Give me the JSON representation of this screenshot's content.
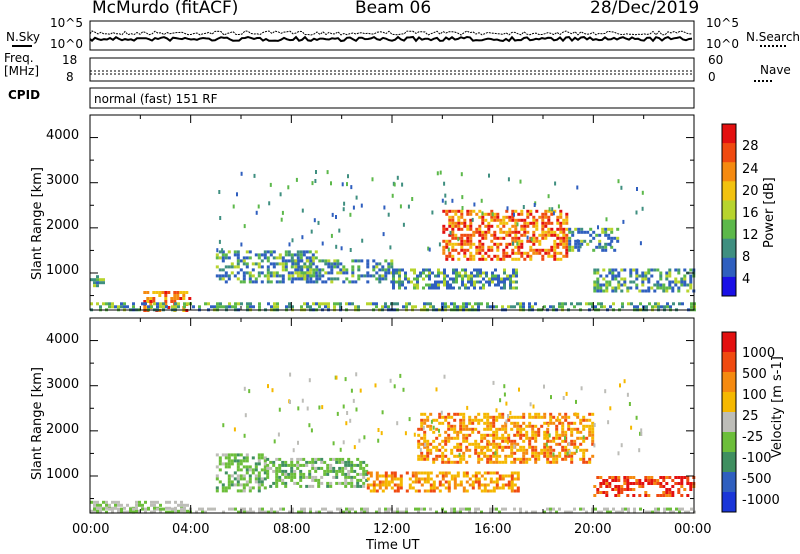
{
  "header": {
    "station": "McMurdo (fitACF)",
    "beam": "Beam 06",
    "date": "28/Dec/2019"
  },
  "top_panels": {
    "nsky_label": "N.Sky",
    "nsky_top": "10^5",
    "nsky_bottom": "10^0",
    "nsearch_label": "N.Search",
    "nsearch_top": "10^5",
    "nsearch_bottom": "10^0",
    "freq_label_1": "Freq.",
    "freq_label_2": "[MHz]",
    "freq_top": "18",
    "freq_bottom": "8",
    "nave_label": "Nave",
    "nave_top": "60",
    "nave_bottom": "0",
    "cpid_label": "CPID",
    "cpid_text": "normal (fast) 151 RF"
  },
  "chart_data": [
    {
      "type": "heatmap",
      "name": "power",
      "ylabel": "Slant Range [km]",
      "ylim": [
        180,
        4500
      ],
      "y_ticks": [
        "1000",
        "2000",
        "3000",
        "4000"
      ],
      "x_ticks": [
        "00:00",
        "04:00",
        "08:00",
        "12:00",
        "16:00",
        "20:00",
        "00:00"
      ],
      "xlim_hours": [
        0,
        24
      ],
      "colorbar": {
        "label": "Power [dB]",
        "ticks": [
          "4",
          "8",
          "12",
          "16",
          "20",
          "24",
          "28"
        ],
        "colors": [
          "#1a10e6",
          "#2f5fbf",
          "#3f8f80",
          "#5cb84a",
          "#b7d42e",
          "#f2c20f",
          "#f58a10",
          "#f04a10",
          "#e31010"
        ]
      },
      "echo_regions": [
        {
          "t0": 2.0,
          "t1": 4.0,
          "r0": 200,
          "r1": 600,
          "level": "high"
        },
        {
          "t0": 0.0,
          "t1": 24.0,
          "r0": 200,
          "r1": 350,
          "level": "low"
        },
        {
          "t0": 0.0,
          "t1": 0.5,
          "r0": 700,
          "r1": 950,
          "level": "low"
        },
        {
          "t0": 5.0,
          "t1": 9.0,
          "r0": 800,
          "r1": 1500,
          "level": "mid"
        },
        {
          "t0": 8.0,
          "t1": 12.0,
          "r0": 800,
          "r1": 1300,
          "level": "mid"
        },
        {
          "t0": 12.0,
          "t1": 17.0,
          "r0": 700,
          "r1": 1100,
          "level": "mid"
        },
        {
          "t0": 14.0,
          "t1": 19.0,
          "r0": 1300,
          "r1": 2400,
          "level": "high"
        },
        {
          "t0": 19.0,
          "t1": 21.0,
          "r0": 1500,
          "r1": 2000,
          "level": "mid"
        },
        {
          "t0": 20.0,
          "t1": 24.0,
          "r0": 600,
          "r1": 1100,
          "level": "mid"
        }
      ]
    },
    {
      "type": "heatmap",
      "name": "velocity",
      "ylabel": "Slant Range [km]",
      "ylim": [
        180,
        4500
      ],
      "y_ticks": [
        "1000",
        "2000",
        "3000",
        "4000"
      ],
      "x_ticks": [
        "00:00",
        "04:00",
        "08:00",
        "12:00",
        "16:00",
        "20:00",
        "00:00"
      ],
      "xlabel": "Time UT",
      "xlim_hours": [
        0,
        24
      ],
      "colorbar": {
        "label": "Velocity [m s-1]",
        "ticks": [
          "1000",
          "500",
          "100",
          "25",
          "-25",
          "-100",
          "-500",
          "-1000"
        ],
        "colors": [
          "#1a36d8",
          "#2f5fbf",
          "#3f8f60",
          "#6cbe3a",
          "#bdbdb8",
          "#f5b800",
          "#f58a10",
          "#f04a10",
          "#e31010"
        ]
      },
      "echo_regions": [
        {
          "t0": 0.0,
          "t1": 4.0,
          "r0": 200,
          "r1": 450,
          "level": "zero"
        },
        {
          "t0": 0.0,
          "t1": 24.0,
          "r0": 200,
          "r1": 300,
          "level": "zero"
        },
        {
          "t0": 5.0,
          "t1": 7.0,
          "r0": 700,
          "r1": 1500,
          "level": "pos"
        },
        {
          "t0": 7.0,
          "t1": 11.0,
          "r0": 800,
          "r1": 1400,
          "level": "pos"
        },
        {
          "t0": 11.0,
          "t1": 17.0,
          "r0": 700,
          "r1": 1100,
          "level": "neg"
        },
        {
          "t0": 13.0,
          "t1": 20.0,
          "r0": 1300,
          "r1": 2400,
          "level": "neg"
        },
        {
          "t0": 20.0,
          "t1": 24.0,
          "r0": 600,
          "r1": 1000,
          "level": "strongneg"
        }
      ]
    }
  ]
}
